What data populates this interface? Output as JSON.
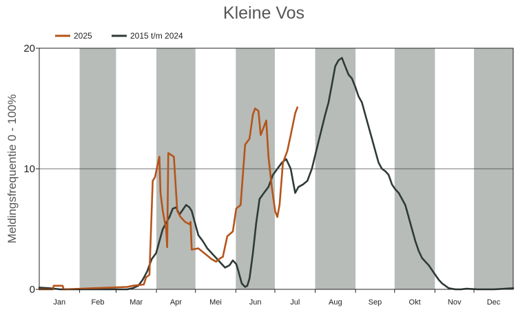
{
  "chart_data": {
    "type": "line",
    "title": "Kleine Vos",
    "ylabel": "Meldingsfrequentie 0 - 100%",
    "xlabel": "",
    "ylim": [
      0,
      20
    ],
    "y_ticks": [
      "0",
      "10",
      "20"
    ],
    "months": [
      "Jan",
      "Feb",
      "Mar",
      "Apr",
      "Mei",
      "Jun",
      "Jul",
      "Aug",
      "Sep",
      "Okt",
      "Nov",
      "Dec"
    ],
    "shaded_months": [
      "Feb",
      "Apr",
      "Jun",
      "Aug",
      "Okt",
      "Dec"
    ],
    "x_unit": "day of year",
    "grid": "horizontal line at 10",
    "legend_position": "top-left",
    "colors": {
      "series_2025": "#b5541a",
      "series_hist": "#2e3a36",
      "shade": "#b7bcb8",
      "grid": "#444444"
    },
    "series": [
      {
        "name": "2025",
        "points": [
          [
            1,
            0.0
          ],
          [
            13,
            0.0
          ],
          [
            14,
            0.3
          ],
          [
            22,
            0.3
          ],
          [
            23,
            0.0
          ],
          [
            80,
            0.2
          ],
          [
            85,
            0.3
          ],
          [
            95,
            0.4
          ],
          [
            97,
            1.0
          ],
          [
            100,
            1.2
          ],
          [
            103,
            9.0
          ],
          [
            105,
            9.3
          ],
          [
            107,
            10.2
          ],
          [
            109,
            11.0
          ],
          [
            110,
            8.0
          ],
          [
            112,
            6.5
          ],
          [
            115,
            5.0
          ],
          [
            116,
            3.5
          ],
          [
            117,
            11.3
          ],
          [
            122,
            11.0
          ],
          [
            125,
            6.5
          ],
          [
            128,
            6.0
          ],
          [
            132,
            5.6
          ],
          [
            136,
            5.4
          ],
          [
            137,
            5.6
          ],
          [
            138,
            3.3
          ],
          [
            144,
            3.4
          ],
          [
            152,
            2.8
          ],
          [
            156,
            2.5
          ],
          [
            160,
            2.3
          ],
          [
            164,
            2.6
          ],
          [
            166,
            2.7
          ],
          [
            170,
            4.4
          ],
          [
            175,
            4.8
          ],
          [
            178,
            6.7
          ],
          [
            182,
            7.0
          ],
          [
            186,
            12.0
          ],
          [
            190,
            12.5
          ],
          [
            193,
            14.5
          ],
          [
            195,
            15.0
          ],
          [
            198,
            14.8
          ],
          [
            200,
            12.8
          ],
          [
            203,
            13.5
          ],
          [
            205,
            14.0
          ],
          [
            207,
            11.0
          ],
          [
            210,
            8.5
          ],
          [
            213,
            6.5
          ],
          [
            215,
            6.0
          ],
          [
            217,
            7.0
          ],
          [
            220,
            10.5
          ],
          [
            224,
            11.5
          ],
          [
            227,
            12.8
          ],
          [
            231,
            14.6
          ],
          [
            233,
            15.1
          ]
        ]
      },
      {
        "name": "2015 t/m 2024",
        "points": [
          [
            1,
            0.15
          ],
          [
            10,
            0.1
          ],
          [
            20,
            0.0
          ],
          [
            70,
            0.0
          ],
          [
            80,
            0.0
          ],
          [
            85,
            0.1
          ],
          [
            90,
            0.3
          ],
          [
            94,
            0.8
          ],
          [
            98,
            1.5
          ],
          [
            102,
            2.5
          ],
          [
            106,
            3.0
          ],
          [
            109,
            4.0
          ],
          [
            112,
            5.0
          ],
          [
            115,
            5.5
          ],
          [
            118,
            6.0
          ],
          [
            121,
            6.7
          ],
          [
            124,
            6.8
          ],
          [
            127,
            6.2
          ],
          [
            130,
            6.6
          ],
          [
            133,
            7.0
          ],
          [
            136,
            6.8
          ],
          [
            138,
            6.5
          ],
          [
            141,
            5.5
          ],
          [
            144,
            4.5
          ],
          [
            148,
            4.0
          ],
          [
            152,
            3.4
          ],
          [
            156,
            3.0
          ],
          [
            160,
            2.6
          ],
          [
            163,
            2.3
          ],
          [
            165,
            2.1
          ],
          [
            168,
            1.8
          ],
          [
            172,
            2.0
          ],
          [
            175,
            2.4
          ],
          [
            178,
            2.1
          ],
          [
            180,
            1.5
          ],
          [
            183,
            0.5
          ],
          [
            186,
            0.2
          ],
          [
            188,
            0.3
          ],
          [
            190,
            0.9
          ],
          [
            193,
            3.0
          ],
          [
            196,
            5.5
          ],
          [
            199,
            7.5
          ],
          [
            203,
            8.0
          ],
          [
            207,
            8.5
          ],
          [
            211,
            9.5
          ],
          [
            215,
            10.0
          ],
          [
            219,
            10.5
          ],
          [
            223,
            10.8
          ],
          [
            227,
            10.0
          ],
          [
            229,
            9.0
          ],
          [
            231,
            8.0
          ],
          [
            234,
            8.5
          ],
          [
            238,
            8.7
          ],
          [
            242,
            9.0
          ],
          [
            246,
            10.0
          ],
          [
            250,
            11.5
          ],
          [
            254,
            13.0
          ],
          [
            258,
            14.5
          ],
          [
            261,
            15.5
          ],
          [
            264,
            17.0
          ],
          [
            267,
            18.5
          ],
          [
            270,
            19.0
          ],
          [
            273,
            19.2
          ],
          [
            276,
            18.5
          ],
          [
            279,
            17.8
          ],
          [
            282,
            17.5
          ],
          [
            285,
            16.8
          ],
          [
            288,
            16.0
          ],
          [
            291,
            15.5
          ],
          [
            294,
            14.5
          ],
          [
            297,
            13.5
          ],
          [
            300,
            12.5
          ],
          [
            303,
            11.5
          ],
          [
            306,
            10.5
          ],
          [
            309,
            10.0
          ],
          [
            312,
            9.8
          ],
          [
            315,
            9.5
          ],
          [
            318,
            8.7
          ],
          [
            321,
            8.3
          ],
          [
            324,
            8.0
          ],
          [
            327,
            7.5
          ],
          [
            330,
            7.0
          ],
          [
            333,
            6.0
          ],
          [
            336,
            5.0
          ],
          [
            339,
            4.0
          ],
          [
            342,
            3.2
          ],
          [
            345,
            2.6
          ],
          [
            348,
            2.3
          ],
          [
            351,
            2.0
          ],
          [
            354,
            1.6
          ],
          [
            357,
            1.2
          ],
          [
            360,
            0.8
          ],
          [
            363,
            0.5
          ],
          [
            366,
            0.3
          ],
          [
            369,
            0.1
          ],
          [
            375,
            0.0
          ],
          [
            380,
            0.0
          ],
          [
            385,
            0.05
          ],
          [
            395,
            0.0
          ],
          [
            410,
            0.0
          ],
          [
            420,
            0.05
          ],
          [
            427,
            0.1
          ]
        ]
      }
    ]
  }
}
